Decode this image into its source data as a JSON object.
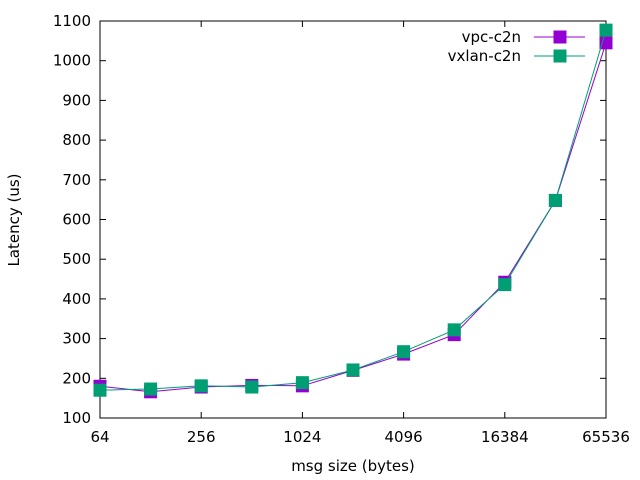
{
  "chart_data": {
    "type": "line",
    "xlabel": "msg size (bytes)",
    "ylabel": "Latency (us)",
    "x_scale": "log2",
    "xlim": [
      64,
      65536
    ],
    "ylim": [
      100,
      1100
    ],
    "x_ticks": [
      64,
      256,
      1024,
      4096,
      16384,
      65536
    ],
    "x_tick_labels": [
      "64",
      "256",
      "1024",
      "4096",
      "16384",
      "65536"
    ],
    "y_ticks": [
      100,
      200,
      300,
      400,
      500,
      600,
      700,
      800,
      900,
      1000,
      1100
    ],
    "grid": false,
    "legend_position": "top-right",
    "x": [
      64,
      128,
      256,
      512,
      1024,
      2048,
      4096,
      8192,
      16384,
      32768,
      65536
    ],
    "series": [
      {
        "name": "vpc-c2n",
        "color": "#9400d3",
        "marker": "square",
        "values": [
          180,
          166,
          178,
          182,
          181,
          220,
          261,
          310,
          442,
          648,
          1045
        ]
      },
      {
        "name": "vxlan-c2n",
        "color": "#009e73",
        "marker": "square",
        "values": [
          170,
          173,
          181,
          178,
          189,
          221,
          267,
          322,
          436,
          648,
          1077
        ]
      }
    ]
  }
}
